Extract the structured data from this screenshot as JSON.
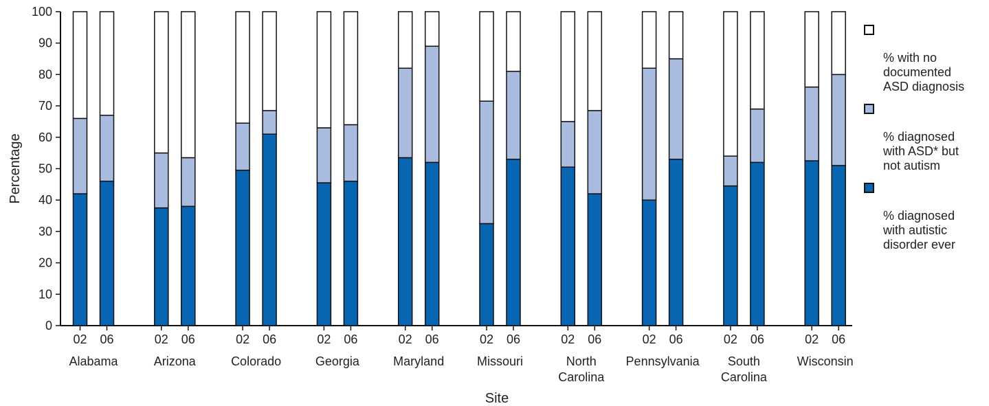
{
  "chart_data": {
    "type": "bar",
    "stacked": true,
    "xlabel": "Site",
    "ylabel": "Percentage",
    "ylim": [
      0,
      100
    ],
    "yticks": [
      0,
      10,
      20,
      30,
      40,
      50,
      60,
      70,
      80,
      90,
      100
    ],
    "grid": false,
    "legend_position": "right",
    "sites": [
      {
        "name": "Alabama",
        "years": [
          {
            "label": "02",
            "autistic": 42,
            "asd_not_autism": 24,
            "no_dx": 34
          },
          {
            "label": "06",
            "autistic": 46,
            "asd_not_autism": 21,
            "no_dx": 33
          }
        ]
      },
      {
        "name": "Arizona",
        "years": [
          {
            "label": "02",
            "autistic": 37.5,
            "asd_not_autism": 17.5,
            "no_dx": 45
          },
          {
            "label": "06",
            "autistic": 38,
            "asd_not_autism": 15.5,
            "no_dx": 46.5
          }
        ]
      },
      {
        "name": "Colorado",
        "years": [
          {
            "label": "02",
            "autistic": 49.5,
            "asd_not_autism": 15,
            "no_dx": 35.5
          },
          {
            "label": "06",
            "autistic": 61,
            "asd_not_autism": 7.5,
            "no_dx": 31.5
          }
        ]
      },
      {
        "name": "Georgia",
        "years": [
          {
            "label": "02",
            "autistic": 45.5,
            "asd_not_autism": 17.5,
            "no_dx": 37
          },
          {
            "label": "06",
            "autistic": 46,
            "asd_not_autism": 18,
            "no_dx": 36
          }
        ]
      },
      {
        "name": "Maryland",
        "years": [
          {
            "label": "02",
            "autistic": 53.5,
            "asd_not_autism": 28.5,
            "no_dx": 18
          },
          {
            "label": "06",
            "autistic": 52,
            "asd_not_autism": 37,
            "no_dx": 11
          }
        ]
      },
      {
        "name": "Missouri",
        "years": [
          {
            "label": "02",
            "autistic": 32.5,
            "asd_not_autism": 39,
            "no_dx": 28.5
          },
          {
            "label": "06",
            "autistic": 53,
            "asd_not_autism": 28,
            "no_dx": 19
          }
        ]
      },
      {
        "name": "North\nCarolina",
        "years": [
          {
            "label": "02",
            "autistic": 50.5,
            "asd_not_autism": 14.5,
            "no_dx": 35
          },
          {
            "label": "06",
            "autistic": 42,
            "asd_not_autism": 26.5,
            "no_dx": 31.5
          }
        ]
      },
      {
        "name": "Pennsylvania",
        "years": [
          {
            "label": "02",
            "autistic": 40,
            "asd_not_autism": 42,
            "no_dx": 18
          },
          {
            "label": "06",
            "autistic": 53,
            "asd_not_autism": 32,
            "no_dx": 15
          }
        ]
      },
      {
        "name": "South\nCarolina",
        "years": [
          {
            "label": "02",
            "autistic": 44.5,
            "asd_not_autism": 9.5,
            "no_dx": 46
          },
          {
            "label": "06",
            "autistic": 52,
            "asd_not_autism": 17,
            "no_dx": 31
          }
        ]
      },
      {
        "name": "Wisconsin",
        "years": [
          {
            "label": "02",
            "autistic": 52.5,
            "asd_not_autism": 23.5,
            "no_dx": 24
          },
          {
            "label": "06",
            "autistic": 51,
            "asd_not_autism": 29,
            "no_dx": 20
          }
        ]
      }
    ],
    "series": [
      {
        "key": "no_dx",
        "name": "% with no\ndocumented\nASD diagnosis",
        "color": "#ffffff"
      },
      {
        "key": "asd_not_autism",
        "name": "% diagnosed\nwith ASD* but\nnot autism",
        "color": "#a9bcdf"
      },
      {
        "key": "autistic",
        "name": "% diagnosed\nwith autistic\ndisorder ever",
        "color": "#0765b1"
      }
    ]
  }
}
